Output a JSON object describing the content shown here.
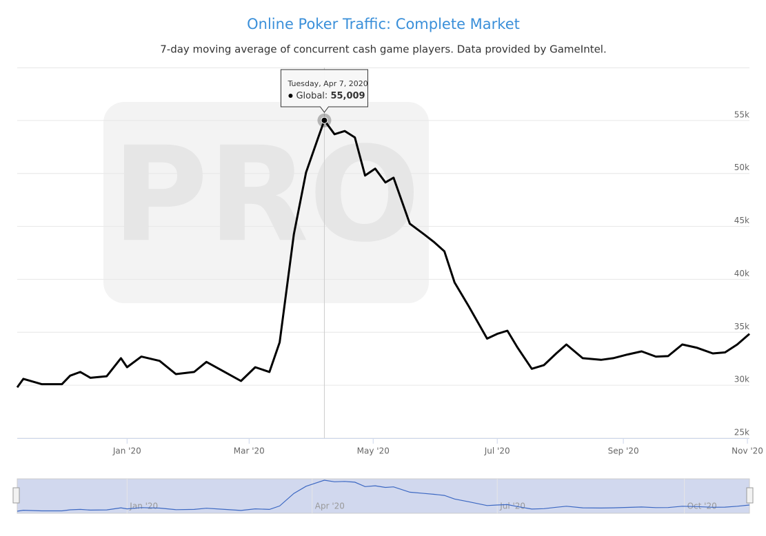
{
  "chart_data": {
    "type": "line",
    "title": "Online Poker Traffic: Complete Market",
    "subtitle": "7-day moving average of concurrent cash game players. Data provided by GameIntel.",
    "watermark": "PRO",
    "x": [
      "2019-11-08",
      "2019-11-11",
      "2019-11-20",
      "2019-11-30",
      "2019-12-04",
      "2019-12-09",
      "2019-12-14",
      "2019-12-22",
      "2019-12-29",
      "2020-01-01",
      "2020-01-08",
      "2020-01-17",
      "2020-01-25",
      "2020-02-03",
      "2020-02-09",
      "2020-02-18",
      "2020-02-26",
      "2020-03-04",
      "2020-03-11",
      "2020-03-16",
      "2020-03-23",
      "2020-03-29",
      "2020-04-04",
      "2020-04-07",
      "2020-04-12",
      "2020-04-17",
      "2020-04-22",
      "2020-04-27",
      "2020-05-02",
      "2020-05-07",
      "2020-05-11",
      "2020-05-19",
      "2020-05-26",
      "2020-05-31",
      "2020-06-05",
      "2020-06-10",
      "2020-06-17",
      "2020-06-26",
      "2020-07-01",
      "2020-07-06",
      "2020-07-11",
      "2020-07-18",
      "2020-07-24",
      "2020-07-30",
      "2020-08-04",
      "2020-08-12",
      "2020-08-21",
      "2020-08-27",
      "2020-09-03",
      "2020-09-10",
      "2020-09-17",
      "2020-09-23",
      "2020-09-30",
      "2020-10-07",
      "2020-10-15",
      "2020-10-21",
      "2020-10-27",
      "2020-11-02"
    ],
    "series": [
      {
        "name": "Global",
        "color": "#000000",
        "values": [
          29800,
          30600,
          30100,
          30100,
          30900,
          31250,
          30700,
          30850,
          32550,
          31700,
          32700,
          32300,
          31050,
          31250,
          32200,
          31250,
          30400,
          31700,
          31250,
          34050,
          44250,
          50100,
          53400,
          55009,
          53700,
          54000,
          53400,
          49800,
          50450,
          49150,
          49600,
          45250,
          44250,
          43500,
          42650,
          39700,
          37450,
          34400,
          34850,
          35150,
          33550,
          31550,
          31900,
          33000,
          33850,
          32550,
          32400,
          32550,
          32900,
          33200,
          32700,
          32750,
          33850,
          33550,
          33000,
          33100,
          33850,
          34850
        ]
      }
    ],
    "xlim": [
      "2019-11-08",
      "2020-11-02"
    ],
    "xticks": [
      {
        "value": "2020-01-01",
        "label": "Jan '20"
      },
      {
        "value": "2020-03-01",
        "label": "Mar '20"
      },
      {
        "value": "2020-05-01",
        "label": "May '20"
      },
      {
        "value": "2020-07-01",
        "label": "Jul '20"
      },
      {
        "value": "2020-09-01",
        "label": "Sep '20"
      },
      {
        "value": "2020-11-01",
        "label": "Nov '20"
      }
    ],
    "ylim": [
      25000,
      60000
    ],
    "yticks": [
      {
        "value": 25000,
        "label": "25k"
      },
      {
        "value": 30000,
        "label": "30k"
      },
      {
        "value": 35000,
        "label": "35k"
      },
      {
        "value": 40000,
        "label": "40k"
      },
      {
        "value": 45000,
        "label": "45k"
      },
      {
        "value": 50000,
        "label": "50k"
      },
      {
        "value": 55000,
        "label": "55k"
      }
    ],
    "grid": true,
    "navigator_xticks": [
      {
        "value": "2020-01-01",
        "label": "Jan '20"
      },
      {
        "value": "2020-04-01",
        "label": "Apr '20"
      },
      {
        "value": "2020-07-01",
        "label": "Jul '20"
      },
      {
        "value": "2020-10-01",
        "label": "Oct '20"
      }
    ],
    "tooltip": {
      "x": "2020-04-07",
      "title": "Tuesday, Apr 7, 2020",
      "value_label": "55,009"
    }
  }
}
